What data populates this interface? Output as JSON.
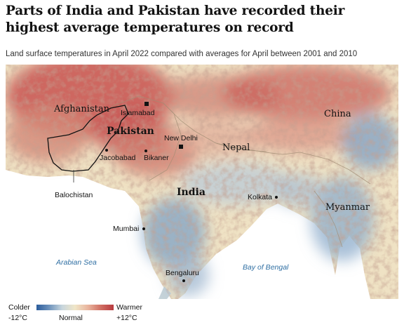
{
  "headline": "Parts of India and Pakistan have recorded their highest average temperatures on record",
  "subtitle": "Land surface temperatures in April 2022 compared with averages for April between 2001 and 2010",
  "map": {
    "countries": {
      "afghanistan": "Afghanistan",
      "pakistan": "Pakistan",
      "china": "China",
      "nepal": "Nepal",
      "india": "India",
      "myanmar": "Myanmar"
    },
    "cities": {
      "islamabad": "Islamabad",
      "new_delhi": "New Delhi",
      "jacobabad": "Jacobabad",
      "bikaner": "Bikaner",
      "kolkata": "Kolkata",
      "mumbai": "Mumbai",
      "bengaluru": "Bengaluru"
    },
    "regions": {
      "balochistan": "Balochistan"
    },
    "seas": {
      "arabian_sea": "Arabian Sea",
      "bay_of_bengal": "Bay of Bengal"
    }
  },
  "legend": {
    "colder": "Colder",
    "warmer": "Warmer",
    "min": "-12°C",
    "mid": "Normal",
    "max": "+12°C",
    "colors": [
      "#2b5c9c",
      "#c8d6dd",
      "#f0e6c8",
      "#d06f63",
      "#b83a3f"
    ]
  }
}
